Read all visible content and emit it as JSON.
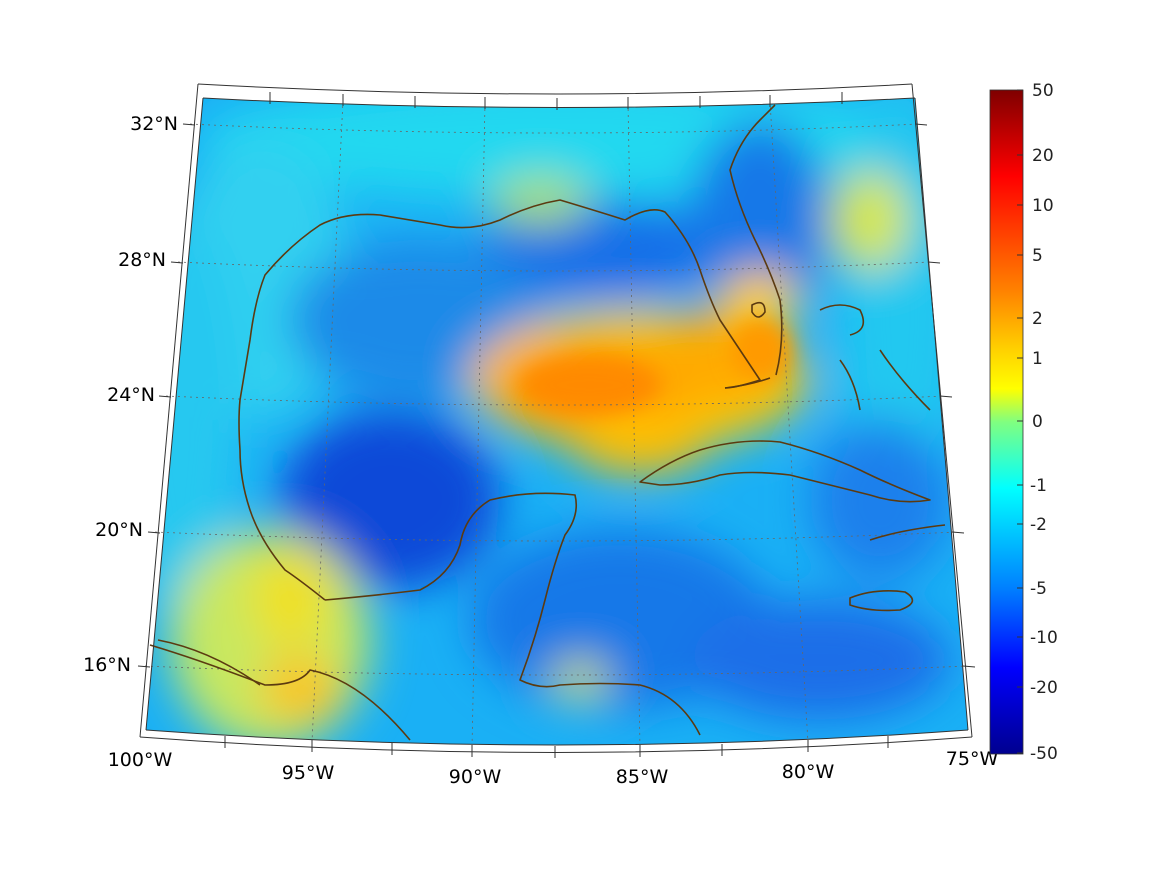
{
  "map": {
    "projection": "conic",
    "lon_ticks": [
      "100°W",
      "95°W",
      "90°W",
      "85°W",
      "80°W",
      "75°W"
    ],
    "lat_ticks": [
      "32°N",
      "28°N",
      "24°N",
      "20°N",
      "16°N"
    ],
    "grid": true,
    "coastline_color": "#5b3a10"
  },
  "colorbar": {
    "labels": [
      "50",
      "20",
      "10",
      "5",
      "2",
      "1",
      "0",
      "-1",
      "-2",
      "-5",
      "-10",
      "-20",
      "-50"
    ],
    "colors": [
      "#7f0000",
      "#ff0000",
      "#ff8000",
      "#ffff00",
      "#80ff80",
      "#00ffff",
      "#0080ff",
      "#0000ff",
      "#00008f"
    ]
  }
}
